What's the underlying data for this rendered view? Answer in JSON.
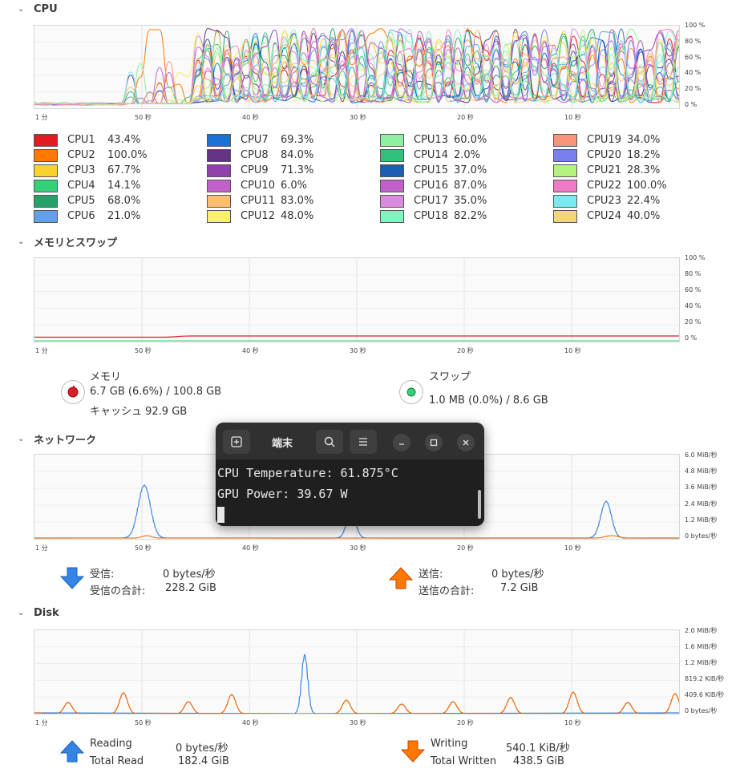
{
  "cpu": {
    "header": "CPU",
    "y_ticks": [
      "100 %",
      "80 %",
      "60 %",
      "40 %",
      "20 %",
      "0 %"
    ],
    "x_ticks": [
      "1 分",
      "50 秒",
      "40 秒",
      "30 秒",
      "20 秒",
      "10 秒"
    ],
    "cores": [
      {
        "name": "CPU1",
        "value": "43.4%",
        "color": "#e01b24"
      },
      {
        "name": "CPU2",
        "value": "100.0%",
        "color": "#ff7800"
      },
      {
        "name": "CPU3",
        "value": "67.7%",
        "color": "#f6d32d"
      },
      {
        "name": "CPU4",
        "value": "14.1%",
        "color": "#33d17a"
      },
      {
        "name": "CPU5",
        "value": "68.0%",
        "color": "#26a269"
      },
      {
        "name": "CPU6",
        "value": "21.0%",
        "color": "#62a0ea"
      },
      {
        "name": "CPU7",
        "value": "69.3%",
        "color": "#1c71d8"
      },
      {
        "name": "CPU8",
        "value": "84.0%",
        "color": "#613583"
      },
      {
        "name": "CPU9",
        "value": "71.3%",
        "color": "#9141ac"
      },
      {
        "name": "CPU10",
        "value": "6.0%",
        "color": "#c061cb"
      },
      {
        "name": "CPU11",
        "value": "83.0%",
        "color": "#ffbe6f"
      },
      {
        "name": "CPU12",
        "value": "48.0%",
        "color": "#f9f06b"
      },
      {
        "name": "CPU13",
        "value": "60.0%",
        "color": "#8ff0a4"
      },
      {
        "name": "CPU14",
        "value": "2.0%",
        "color": "#2ec27e"
      },
      {
        "name": "CPU15",
        "value": "37.0%",
        "color": "#1a5fb4"
      },
      {
        "name": "CPU16",
        "value": "87.0%",
        "color": "#c061cb"
      },
      {
        "name": "CPU17",
        "value": "35.0%",
        "color": "#dc8add"
      },
      {
        "name": "CPU18",
        "value": "82.2%",
        "color": "#7ff5c0"
      },
      {
        "name": "CPU19",
        "value": "34.0%",
        "color": "#f99379"
      },
      {
        "name": "CPU20",
        "value": "18.2%",
        "color": "#7a7ff0"
      },
      {
        "name": "CPU21",
        "value": "28.3%",
        "color": "#b4f37c"
      },
      {
        "name": "CPU22",
        "value": "100.0%",
        "color": "#f07ac8"
      },
      {
        "name": "CPU23",
        "value": "22.4%",
        "color": "#7aeaf0"
      },
      {
        "name": "CPU24",
        "value": "40.0%",
        "color": "#f1d67a"
      }
    ]
  },
  "memory": {
    "header": "メモリとスワップ",
    "y_ticks": [
      "100 %",
      "80 %",
      "60 %",
      "40 %",
      "20 %",
      "0 %"
    ],
    "x_ticks": [
      "1 分",
      "50 秒",
      "40 秒",
      "30 秒",
      "20 秒",
      "10 秒"
    ],
    "mem_label": "メモリ",
    "mem_value": "6.7 GB (6.6%) / 100.8 GB",
    "cache_value": "キャッシュ 92.9 GB",
    "swap_label": "スワップ",
    "swap_value": "1.0 MB (0.0%) / 8.6 GB",
    "mem_color": "#e01b24",
    "swap_color": "#33d17a"
  },
  "network": {
    "header": "ネットワーク",
    "y_ticks": [
      "6.0 MiB/秒",
      "4.8 MiB/秒",
      "3.6 MiB/秒",
      "2.4 MiB/秒",
      "1.2 MiB/秒",
      "0 bytes/秒"
    ],
    "x_ticks": [
      "1 分",
      "50 秒",
      "40 秒",
      "30 秒",
      "20 秒",
      "10 秒"
    ],
    "recv_label": "受信:",
    "recv_value": "0 bytes/秒",
    "recv_total_label": "受信の合計:",
    "recv_total_value": "228.2 GiB",
    "send_label": "送信:",
    "send_value": "0 bytes/秒",
    "send_total_label": "送信の合計:",
    "send_total_value": "7.2 GiB",
    "recv_color": "#3584e4",
    "send_color": "#e66100"
  },
  "disk": {
    "header": "Disk",
    "y_ticks": [
      "2.0 MiB/秒",
      "1.6 MiB/秒",
      "1.2 MiB/秒",
      "819.2 KiB/秒",
      "409.6 KiB/秒",
      "0 bytes/秒"
    ],
    "x_ticks": [
      "1 分",
      "50 秒",
      "40 秒",
      "30 秒",
      "20 秒",
      "10 秒"
    ],
    "read_label": "Reading",
    "read_value": "0 bytes/秒",
    "read_total_label": "Total Read",
    "read_total_value": "182.4 GiB",
    "write_label": "Writing",
    "write_value": "540.1 KiB/秒",
    "write_total_label": "Total Written",
    "write_total_value": "438.5 GiB"
  },
  "terminal": {
    "title": "端末",
    "lines": [
      "CPU Temperature: 61.875°C",
      "GPU Power: 39.67 W"
    ],
    "new_tab_icon": "new-tab-icon",
    "search_icon": "search-icon",
    "menu_icon": "menu-icon"
  }
}
